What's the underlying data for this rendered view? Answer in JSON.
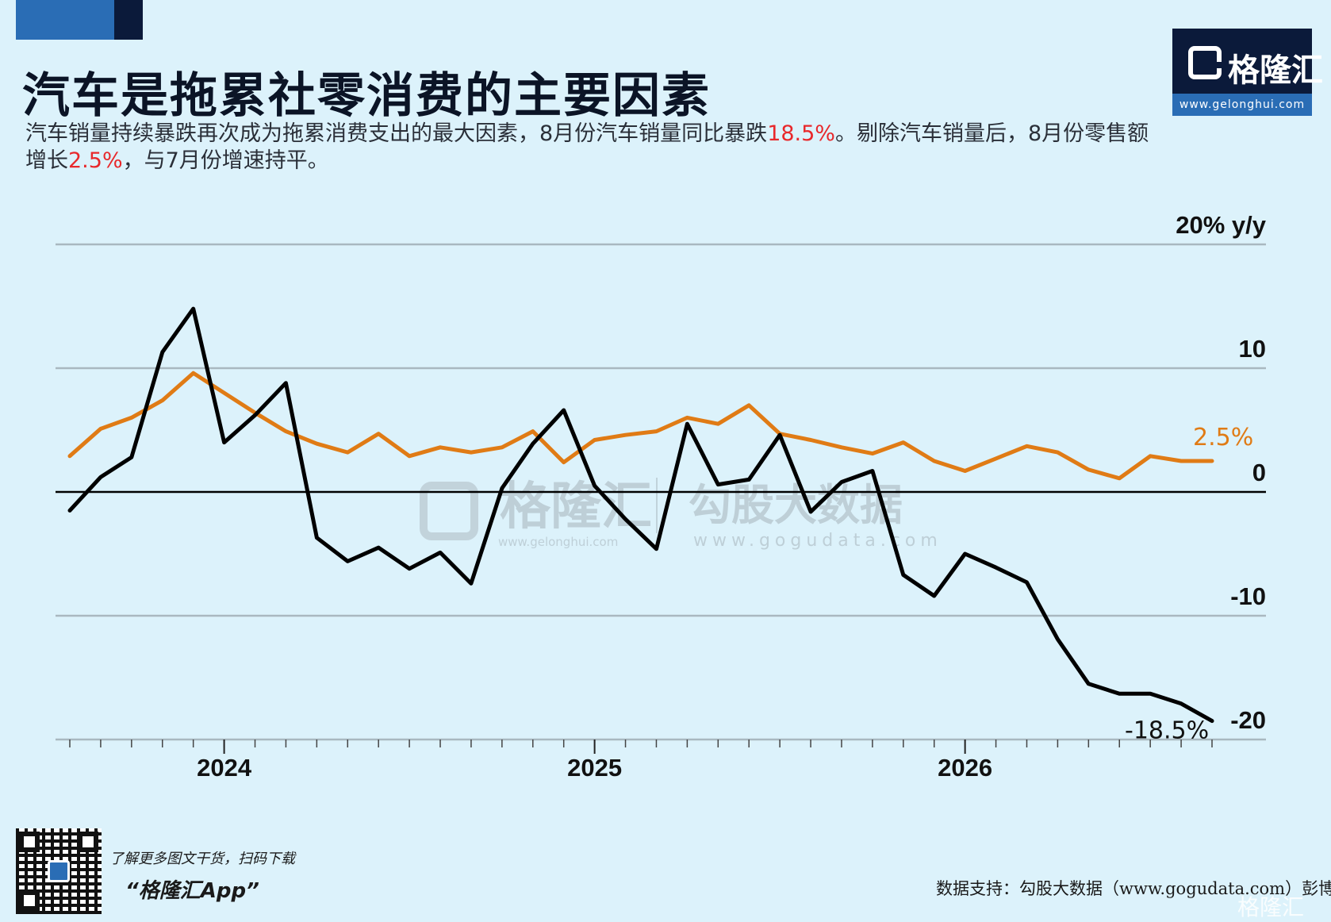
{
  "header": {
    "title": "汽车是拖累社零消费的主要因素",
    "subtitle_parts": [
      {
        "text": "汽车销量持续暴跌再次成为拖累消费支出的最大因素，8月份汽车销量同比暴跌",
        "highlight": false
      },
      {
        "text": "18.5%",
        "highlight": true
      },
      {
        "text": "。剔除汽车销量后，8月份零售额增长",
        "highlight": false
      },
      {
        "text": "2.5%",
        "highlight": true
      },
      {
        "text": "，与7月份增速持平。",
        "highlight": false
      }
    ],
    "highlight_color": "#e8282b"
  },
  "logo": {
    "name": "格隆汇",
    "url": "www.gelonghui.com"
  },
  "watermarks": {
    "gelonghui_name": "格隆汇",
    "gelonghui_url": "www.gelonghui.com",
    "gogu_name": "勾股大数据",
    "gogu_url": "www.gogudata.com",
    "corner": "格隆汇"
  },
  "footer": {
    "promo_line1": "了解更多图文干货，扫码下载",
    "promo_line2": "“格隆汇App”",
    "source": "数据支持：勾股大数据（www.gogudata.com）彭博"
  },
  "chart_data": {
    "type": "line",
    "y_unit_label": "20% y/y",
    "ylim": [
      -20,
      20
    ],
    "y_ticks": [
      {
        "value": 20,
        "label": "20% y/y"
      },
      {
        "value": 10,
        "label": "10"
      },
      {
        "value": 0,
        "label": "0"
      },
      {
        "value": -10,
        "label": "-10"
      },
      {
        "value": -20,
        "label": "-20"
      }
    ],
    "x_labels": [
      {
        "index": 5,
        "label": "2024"
      },
      {
        "index": 17,
        "label": "2025"
      },
      {
        "index": 29,
        "label": "2026"
      }
    ],
    "x_count": 38,
    "series": [
      {
        "name": "",
        "color": "#000000",
        "values": [
          -1.5,
          1.2,
          2.8,
          11.3,
          14.8,
          4.0,
          6.2,
          8.8,
          -3.7,
          -5.6,
          -4.5,
          -6.2,
          -4.9,
          -7.4,
          0.3,
          3.9,
          6.6,
          0.5,
          -2.2,
          -4.6,
          5.5,
          0.6,
          1.0,
          4.6,
          -1.6,
          0.8,
          1.7,
          -6.7,
          -8.4,
          -5.0,
          -6.1,
          -7.3,
          -11.9,
          -15.5,
          -16.3,
          -16.3,
          -17.1,
          -18.5
        ],
        "end_label": "-18.5%"
      },
      {
        "name": "",
        "color": "#e07b15",
        "values": [
          2.9,
          5.1,
          6.0,
          7.4,
          9.6,
          8.0,
          6.4,
          4.9,
          3.9,
          3.2,
          4.7,
          2.9,
          3.6,
          3.2,
          3.6,
          4.9,
          2.4,
          4.2,
          4.6,
          4.9,
          6.0,
          5.5,
          7.0,
          4.7,
          4.2,
          3.6,
          3.1,
          4.0,
          2.5,
          1.7,
          2.7,
          3.7,
          3.2,
          1.8,
          1.1,
          2.9,
          2.5,
          2.5
        ],
        "end_label": "2.5%"
      }
    ],
    "grid": true
  }
}
